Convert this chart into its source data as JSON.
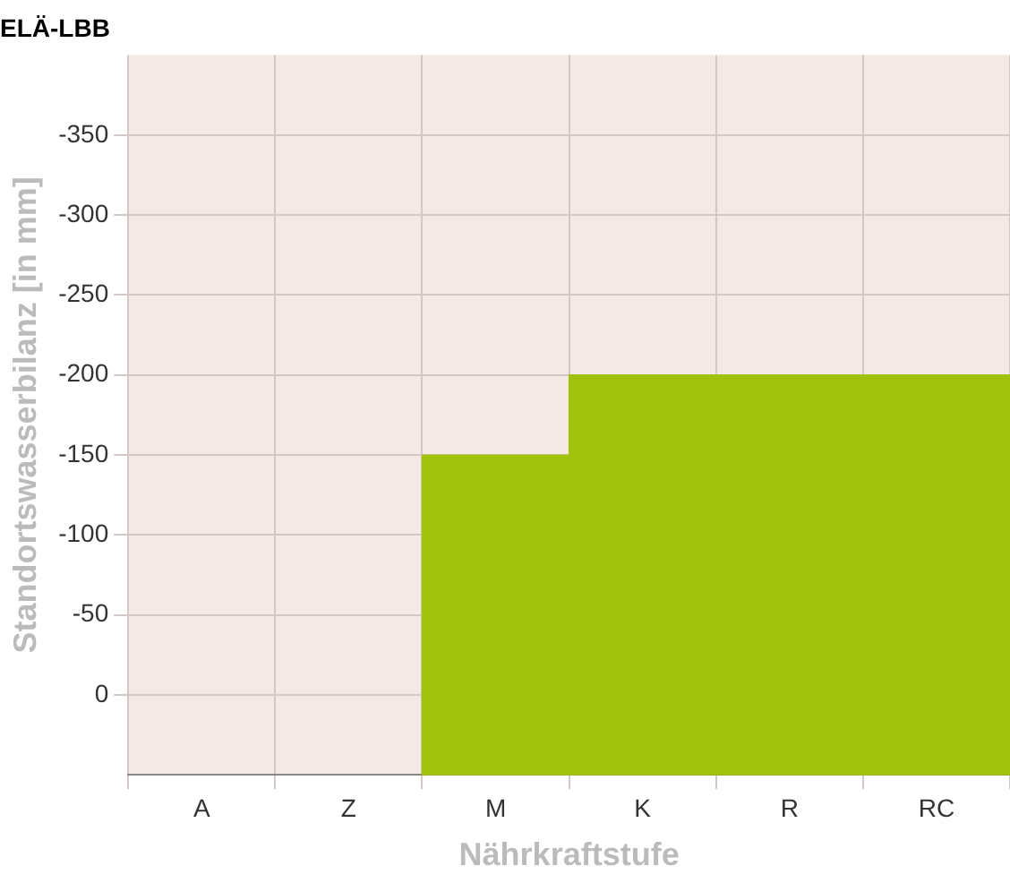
{
  "chart_data": {
    "type": "bar",
    "title": "ELÄ-LBB",
    "xlabel": "Nährkraftstufe",
    "ylabel": "Standortswasserbilanz [in mm]",
    "categories": [
      "A",
      "Z",
      "M",
      "K",
      "R",
      "RC"
    ],
    "values": [
      null,
      null,
      -200,
      -250,
      -250,
      -250
    ],
    "base": [
      null,
      null,
      50,
      50,
      50,
      50
    ],
    "color": "#a0c20a",
    "ylim": [
      50,
      -400
    ],
    "yticks": [
      0,
      -50,
      -100,
      -150,
      -200,
      -250,
      -300,
      -350
    ],
    "grid": true
  }
}
